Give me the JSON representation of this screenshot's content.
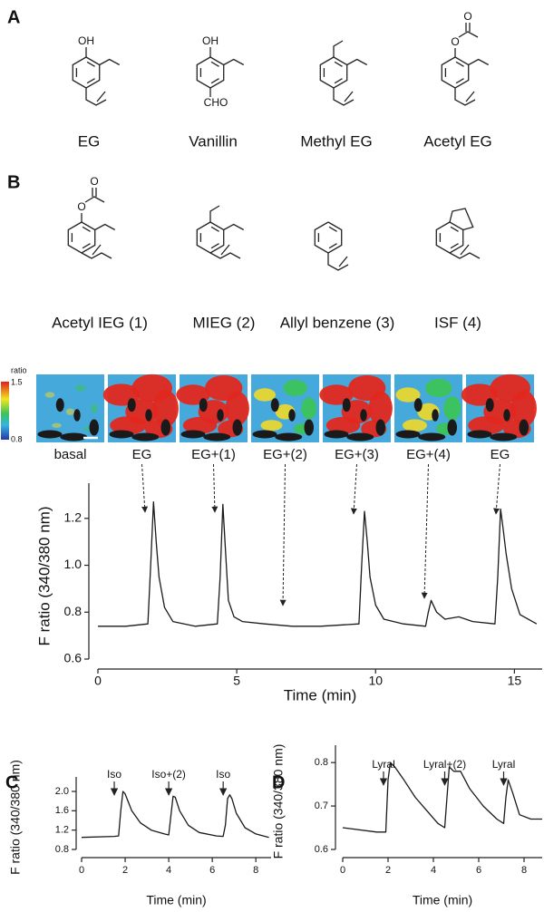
{
  "panel_labels": [
    "A",
    "B",
    "C",
    "D"
  ],
  "panel_a": {
    "molecules": [
      {
        "name": "EG",
        "atoms": [
          "OH"
        ]
      },
      {
        "name": "Vanillin",
        "atoms": [
          "OH",
          "CHO"
        ]
      },
      {
        "name": "Methyl EG"
      },
      {
        "name": "Acetyl EG",
        "atoms": [
          "O",
          "O"
        ]
      }
    ]
  },
  "panel_b": {
    "molecules": [
      {
        "name": "Acetyl IEG (1)",
        "atoms": [
          "O",
          "O"
        ]
      },
      {
        "name": "MIEG (2)"
      },
      {
        "name": "Allyl benzene (3)"
      },
      {
        "name": "ISF (4)"
      }
    ],
    "colorbar": {
      "title": "ratio",
      "top": "1.5",
      "bottom": "0.8"
    },
    "images": [
      "basal",
      "EG",
      "EG+(1)",
      "EG+(2)",
      "EG+(3)",
      "EG+(4)",
      "EG"
    ]
  },
  "chart_data": [
    {
      "type": "line",
      "x_label": "Time (min)",
      "y_label": "F ratio (340/380 nm)",
      "color": "#1a1a1a",
      "x": [
        0,
        1,
        1.8,
        1.9,
        2.0,
        2.1,
        2.2,
        2.4,
        2.7,
        3.5,
        4.3,
        4.4,
        4.5,
        4.6,
        4.7,
        4.9,
        5.2,
        6,
        7,
        8,
        9.4,
        9.5,
        9.6,
        9.7,
        9.8,
        10.0,
        10.3,
        11,
        11.8,
        11.9,
        12.0,
        12.2,
        12.5,
        13,
        13.5,
        14.3,
        14.4,
        14.5,
        14.6,
        14.7,
        14.9,
        15.2,
        15.8
      ],
      "values": [
        0.74,
        0.74,
        0.75,
        1.0,
        1.27,
        1.1,
        0.95,
        0.82,
        0.76,
        0.74,
        0.75,
        0.95,
        1.26,
        1.05,
        0.85,
        0.78,
        0.76,
        0.75,
        0.74,
        0.74,
        0.75,
        1.0,
        1.23,
        1.1,
        0.95,
        0.83,
        0.77,
        0.75,
        0.74,
        0.8,
        0.85,
        0.8,
        0.77,
        0.78,
        0.76,
        0.75,
        0.95,
        1.24,
        1.15,
        1.05,
        0.9,
        0.79,
        0.75
      ],
      "xlim": [
        0,
        16
      ],
      "ylim": [
        0.6,
        1.35
      ],
      "xticks": [
        0,
        5,
        10,
        15
      ],
      "yticks": [
        0.6,
        0.8,
        {
          "value": 1,
          "label": "1.0"
        },
        1.2
      ]
    },
    {
      "type": "line",
      "x_label": "Time (min)",
      "y_label": "F ratio (340/380 nm)",
      "color": "#1a1a1a",
      "x": [
        0,
        1.5,
        1.7,
        1.8,
        1.9,
        2.0,
        2.3,
        2.7,
        3.2,
        3.8,
        4.0,
        4.1,
        4.2,
        4.3,
        4.5,
        4.9,
        5.4,
        6.2,
        6.5,
        6.6,
        6.7,
        6.8,
        6.9,
        7.1,
        7.5,
        8,
        8.6
      ],
      "values": [
        1.05,
        1.07,
        1.08,
        1.6,
        2.0,
        1.95,
        1.6,
        1.35,
        1.2,
        1.12,
        1.1,
        1.5,
        1.9,
        1.88,
        1.6,
        1.3,
        1.15,
        1.08,
        1.07,
        1.3,
        1.85,
        1.93,
        1.85,
        1.55,
        1.25,
        1.12,
        1.05
      ],
      "xlim": [
        0,
        8.7
      ],
      "ylim": [
        0.8,
        2.3
      ],
      "xticks": [
        0,
        2,
        4,
        6,
        8
      ],
      "yticks": [
        0.8,
        1.2,
        1.6,
        {
          "value": 2,
          "label": "2.0"
        }
      ],
      "annotations": [
        {
          "text": "Iso",
          "x": 1.5
        },
        {
          "text": "Iso+(2)",
          "x": 4.0
        },
        {
          "text": "Iso",
          "x": 6.5
        }
      ]
    },
    {
      "type": "line",
      "x_label": "Time (min)",
      "y_label": "F ratio (340/380 nm)",
      "color": "#1a1a1a",
      "x": [
        0,
        1.5,
        1.9,
        2.0,
        2.1,
        2.3,
        2.7,
        3.2,
        3.7,
        4.2,
        4.5,
        4.6,
        4.7,
        4.9,
        5.2,
        5.6,
        6.2,
        6.8,
        7.1,
        7.2,
        7.3,
        7.5,
        7.8,
        8.3,
        8.8
      ],
      "values": [
        0.65,
        0.64,
        0.64,
        0.76,
        0.8,
        0.79,
        0.76,
        0.72,
        0.69,
        0.66,
        0.65,
        0.72,
        0.79,
        0.78,
        0.78,
        0.74,
        0.7,
        0.67,
        0.66,
        0.72,
        0.76,
        0.73,
        0.68,
        0.67,
        0.67
      ],
      "xlim": [
        0,
        8.8
      ],
      "ylim": [
        0.6,
        0.84
      ],
      "xticks": [
        0,
        2,
        4,
        6,
        8
      ],
      "yticks": [
        0.6,
        0.7,
        0.8
      ],
      "annotations": [
        {
          "text": "Lyral",
          "x": 1.8
        },
        {
          "text": "Lyral+(2)",
          "x": 4.5
        },
        {
          "text": "Lyral",
          "x": 7.1
        }
      ]
    }
  ]
}
